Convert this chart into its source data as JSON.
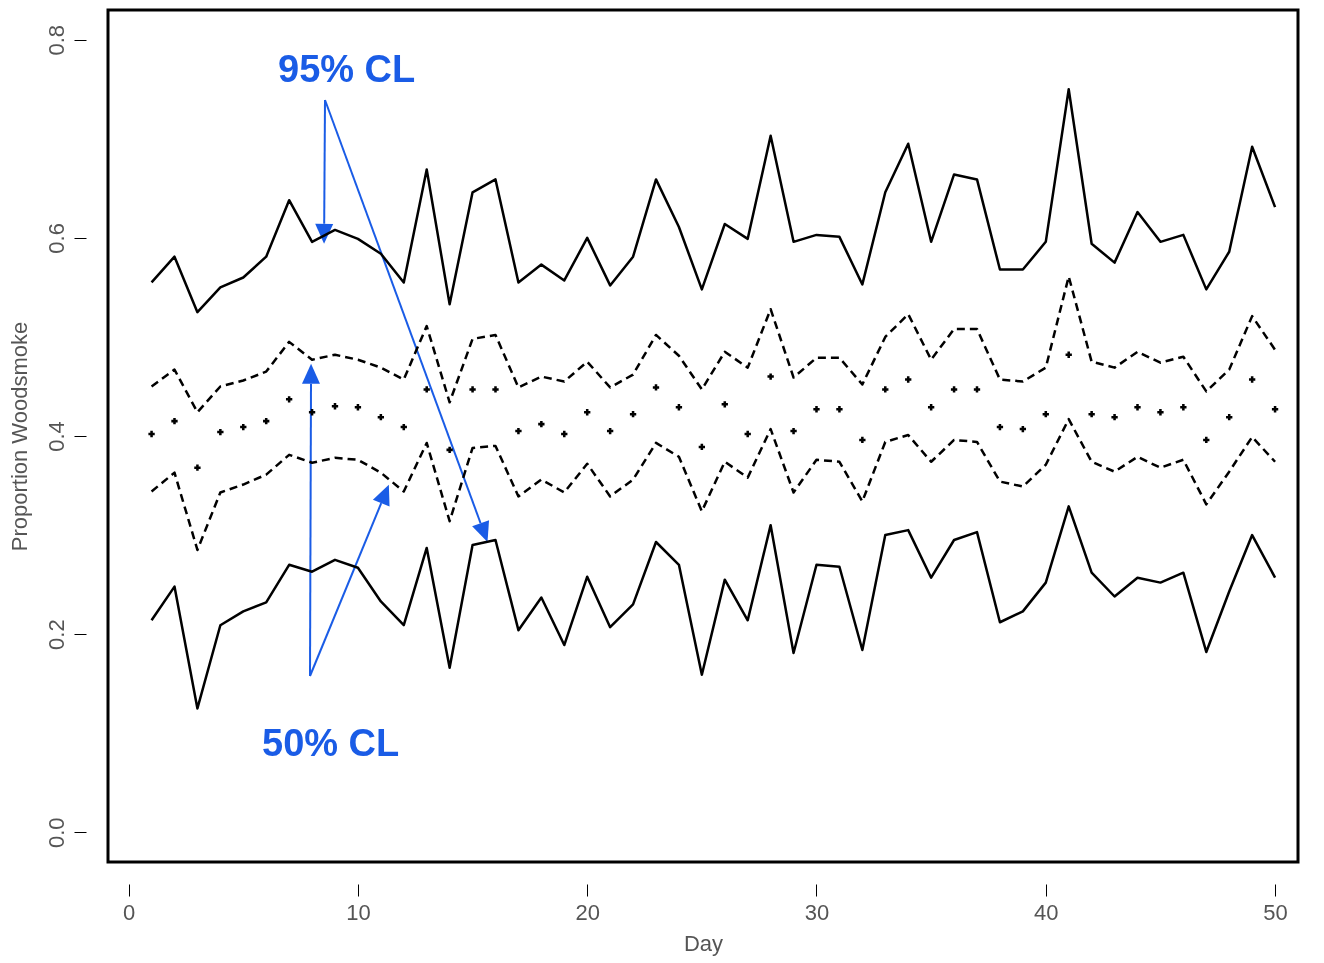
{
  "chart_data": {
    "type": "line",
    "xlabel": "Day",
    "ylabel": "Proportion Woodsmoke",
    "x": [
      1,
      2,
      3,
      4,
      5,
      6,
      7,
      8,
      9,
      10,
      11,
      12,
      13,
      14,
      15,
      16,
      17,
      18,
      19,
      20,
      21,
      22,
      23,
      24,
      25,
      26,
      27,
      28,
      29,
      30,
      31,
      32,
      33,
      34,
      35,
      36,
      37,
      38,
      39,
      40,
      41,
      42,
      43,
      44,
      45,
      46,
      47,
      48,
      49,
      50
    ],
    "series": [
      {
        "line_style": "solid",
        "color": "#000000",
        "values": [
          0.555,
          0.581,
          0.525,
          0.55,
          0.56,
          0.581,
          0.638,
          0.596,
          0.608,
          0.599,
          0.584,
          0.555,
          0.669,
          0.533,
          0.646,
          0.659,
          0.555,
          0.573,
          0.557,
          0.6,
          0.552,
          0.581,
          0.659,
          0.611,
          0.548,
          0.614,
          0.599,
          0.703,
          0.596,
          0.603,
          0.601,
          0.553,
          0.646,
          0.695,
          0.596,
          0.664,
          0.659,
          0.568,
          0.568,
          0.596,
          0.75,
          0.594,
          0.575,
          0.626,
          0.596,
          0.603,
          0.548,
          0.586,
          0.692,
          0.631
        ]
      },
      {
        "line_style": "dashed",
        "color": "#000000",
        "values": [
          0.45,
          0.467,
          0.424,
          0.45,
          0.456,
          0.465,
          0.495,
          0.477,
          0.482,
          0.477,
          0.469,
          0.457,
          0.511,
          0.434,
          0.498,
          0.502,
          0.449,
          0.46,
          0.455,
          0.475,
          0.449,
          0.462,
          0.502,
          0.481,
          0.447,
          0.485,
          0.469,
          0.528,
          0.459,
          0.479,
          0.479,
          0.452,
          0.5,
          0.523,
          0.477,
          0.508,
          0.508,
          0.457,
          0.455,
          0.469,
          0.561,
          0.475,
          0.469,
          0.485,
          0.474,
          0.48,
          0.445,
          0.467,
          0.521,
          0.487
        ]
      },
      {
        "type": "scatter",
        "marker": "cross",
        "color": "#000000",
        "values": [
          0.402,
          0.415,
          0.368,
          0.404,
          0.409,
          0.415,
          0.437,
          0.424,
          0.43,
          0.429,
          0.419,
          0.409,
          0.447,
          0.386,
          0.447,
          0.447,
          0.405,
          0.412,
          0.402,
          0.424,
          0.405,
          0.422,
          0.449,
          0.429,
          0.389,
          0.432,
          0.402,
          0.46,
          0.405,
          0.427,
          0.427,
          0.396,
          0.447,
          0.457,
          0.429,
          0.447,
          0.447,
          0.409,
          0.407,
          0.422,
          0.482,
          0.422,
          0.419,
          0.429,
          0.424,
          0.429,
          0.396,
          0.419,
          0.457,
          0.427
        ]
      },
      {
        "line_style": "dashed",
        "color": "#000000",
        "values": [
          0.344,
          0.363,
          0.285,
          0.343,
          0.351,
          0.361,
          0.381,
          0.373,
          0.378,
          0.376,
          0.363,
          0.344,
          0.393,
          0.314,
          0.388,
          0.39,
          0.339,
          0.356,
          0.343,
          0.372,
          0.339,
          0.356,
          0.393,
          0.379,
          0.324,
          0.374,
          0.358,
          0.407,
          0.343,
          0.376,
          0.374,
          0.334,
          0.394,
          0.401,
          0.374,
          0.396,
          0.394,
          0.354,
          0.349,
          0.371,
          0.417,
          0.374,
          0.364,
          0.379,
          0.368,
          0.376,
          0.331,
          0.364,
          0.399,
          0.374
        ]
      },
      {
        "line_style": "solid",
        "color": "#000000",
        "values": [
          0.214,
          0.248,
          0.125,
          0.209,
          0.223,
          0.232,
          0.27,
          0.263,
          0.275,
          0.267,
          0.233,
          0.209,
          0.287,
          0.166,
          0.29,
          0.295,
          0.204,
          0.237,
          0.189,
          0.258,
          0.207,
          0.23,
          0.293,
          0.27,
          0.159,
          0.255,
          0.214,
          0.31,
          0.181,
          0.27,
          0.268,
          0.184,
          0.3,
          0.305,
          0.257,
          0.295,
          0.303,
          0.212,
          0.223,
          0.252,
          0.329,
          0.262,
          0.238,
          0.257,
          0.252,
          0.262,
          0.182,
          0.243,
          0.3,
          0.257
        ]
      }
    ],
    "xlim": [
      -0.9,
      51
    ],
    "xticks": [
      0,
      10,
      20,
      30,
      40,
      50
    ],
    "ylim": [
      -0.03,
      0.83
    ],
    "yticks": [
      {
        "value": 0,
        "label": "0.0"
      },
      0.2,
      0.4,
      0.6,
      0.8
    ],
    "grid": false,
    "annotations": [
      "95% CL",
      "50% CL"
    ]
  }
}
